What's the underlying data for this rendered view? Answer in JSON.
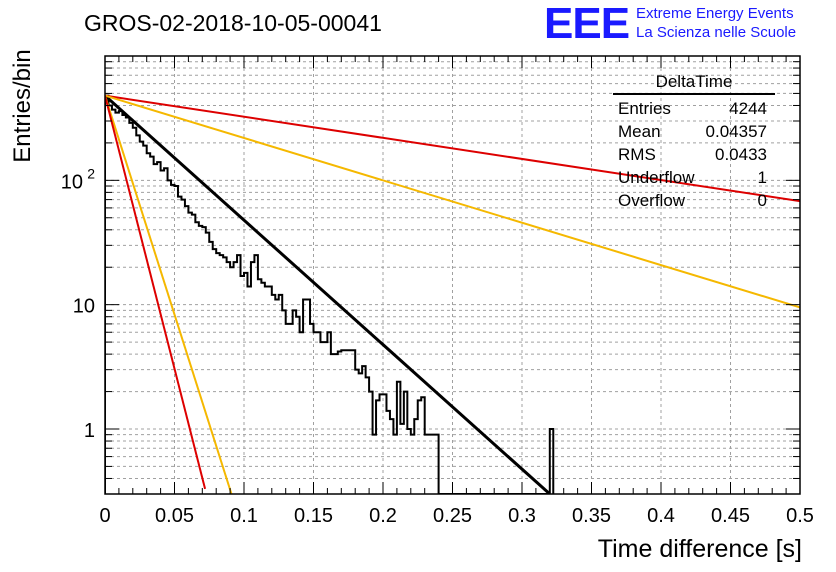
{
  "header": {
    "title": "GROS-02-2018-10-05-00041",
    "logo": "EEE",
    "logo_line1": "Extreme Energy Events",
    "logo_line2": "La Scienza nelle Scuole"
  },
  "stats": {
    "name": "DeltaTime",
    "rows": [
      {
        "label": "Entries",
        "value": "4244"
      },
      {
        "label": "Mean",
        "value": "0.04357"
      },
      {
        "label": "RMS",
        "value": "0.0433"
      },
      {
        "label": "Underflow",
        "value": "1"
      },
      {
        "label": "Overflow",
        "value": "0"
      }
    ]
  },
  "colors": {
    "histogram": "#000000",
    "fit": "#000000",
    "red": "#dd0000",
    "yellow": "#f5b800",
    "grid": "#a0a0a0"
  },
  "chart_data": {
    "type": "line",
    "xlabel": "Time difference [s]",
    "ylabel": "Entries/bin",
    "xlim": [
      0,
      0.5
    ],
    "ylim": [
      0.3,
      1000
    ],
    "yscale": "log",
    "grid": true,
    "xticks": [
      "0",
      "0.05",
      "0.1",
      "0.15",
      "0.2",
      "0.25",
      "0.3",
      "0.35",
      "0.4",
      "0.45",
      "0.5"
    ],
    "yticks": [
      {
        "value": 1,
        "label": "1"
      },
      {
        "value": 10,
        "label": "10"
      },
      {
        "value": 100,
        "label": "10",
        "sup": "2"
      }
    ],
    "histogram": {
      "bin_width": 0.0025,
      "start": 0.0,
      "values": [
        480,
        400,
        370,
        350,
        360,
        335,
        320,
        290,
        265,
        230,
        205,
        190,
        165,
        155,
        135,
        140,
        120,
        125,
        100,
        92,
        90,
        74,
        70,
        62,
        55,
        53,
        46,
        43,
        42,
        38,
        32,
        28,
        26,
        25,
        24,
        22,
        20,
        22,
        25,
        17,
        18,
        14,
        22,
        25,
        16,
        15,
        14,
        14,
        12,
        11,
        12,
        9,
        7,
        7,
        9,
        8,
        6,
        11,
        11,
        7,
        6,
        6,
        5,
        5,
        6,
        4,
        4,
        4.2,
        4.3,
        4.3,
        4.3,
        4.3,
        3,
        2.8,
        3.2,
        2.6,
        2,
        0.9,
        1.7,
        1.9,
        1.9,
        1.4,
        1.2,
        0.9,
        2.4,
        1.1,
        2,
        1.0,
        0.9,
        1.2,
        1.7,
        1.8,
        0.9,
        0.9,
        0.9,
        0.9,
        0.3,
        0.3,
        0.3,
        0.3,
        0.3,
        0.3,
        0.3,
        0.3,
        0.3,
        0.3,
        0.3,
        0.3,
        0.3,
        0.3,
        0.3,
        0.3,
        0.3,
        0.3,
        0.3,
        0.3,
        0.3,
        0.3,
        0.3,
        0.3,
        0.3,
        0.3,
        0.3,
        0.3,
        0.3,
        0.3,
        0.3,
        0.3
      ]
    },
    "extra_bins": [
      {
        "x": 0.32,
        "value": 1.0
      }
    ],
    "series": [
      {
        "style": "fit",
        "color": "#000000",
        "x": [
          0,
          0.32
        ],
        "y": [
          480,
          0.3
        ]
      },
      {
        "style": "red-slow",
        "color": "#dd0000",
        "x": [
          0,
          0.5
        ],
        "y": [
          480,
          68
        ]
      },
      {
        "style": "yellow-slow",
        "color": "#f5b800",
        "x": [
          0,
          0.5
        ],
        "y": [
          480,
          9.5
        ]
      },
      {
        "style": "yellow-fast",
        "color": "#f5b800",
        "x": [
          0,
          0.091
        ],
        "y": [
          480,
          0.3
        ]
      },
      {
        "style": "red-fast",
        "color": "#dd0000",
        "x": [
          0,
          0.072
        ],
        "y": [
          480,
          0.33
        ]
      }
    ]
  }
}
